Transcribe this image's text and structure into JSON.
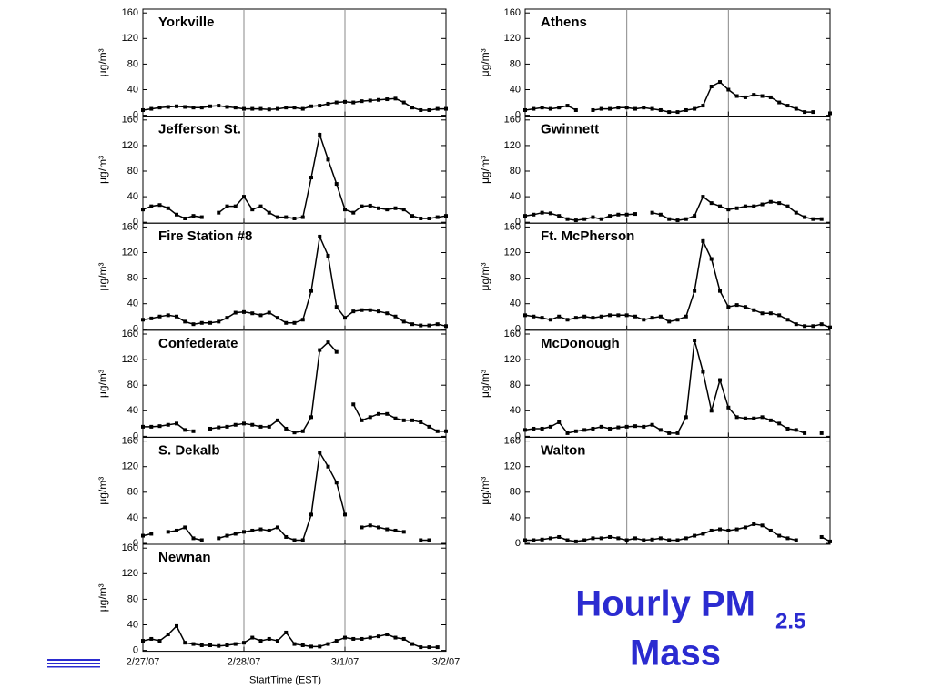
{
  "chart_data": [
    {
      "type": "line",
      "title": "Yorkville",
      "ylabel": "μg/m³",
      "xlim": [
        0,
        72
      ],
      "xticks": [
        0,
        24,
        48,
        72
      ],
      "ylim": [
        0,
        166
      ],
      "yticks": [
        0,
        40,
        80,
        120,
        160
      ],
      "color": "#000000",
      "x": [
        0,
        2,
        4,
        6,
        8,
        10,
        12,
        14,
        16,
        18,
        20,
        22,
        24,
        26,
        28,
        30,
        32,
        34,
        36,
        38,
        40,
        42,
        44,
        46,
        48,
        50,
        52,
        54,
        56,
        58,
        60,
        62,
        64,
        66,
        68,
        70,
        72
      ],
      "values": [
        8,
        10,
        12,
        13,
        14,
        13,
        12,
        12,
        14,
        15,
        13,
        12,
        10,
        10,
        10,
        9,
        10,
        12,
        12,
        10,
        14,
        15,
        18,
        20,
        21,
        20,
        22,
        23,
        24,
        25,
        26,
        20,
        12,
        8,
        8,
        10,
        10
      ]
    },
    {
      "type": "line",
      "title": "Jefferson St.",
      "ylabel": "μg/m³",
      "xlim": [
        0,
        72
      ],
      "xticks": [
        0,
        24,
        48,
        72
      ],
      "ylim": [
        0,
        166
      ],
      "yticks": [
        0,
        40,
        80,
        120,
        160
      ],
      "color": "#000000",
      "x": [
        0,
        2,
        4,
        6,
        8,
        10,
        12,
        14,
        16,
        18,
        20,
        22,
        24,
        26,
        28,
        30,
        32,
        34,
        36,
        38,
        40,
        42,
        44,
        46,
        48,
        50,
        52,
        54,
        56,
        58,
        60,
        62,
        64,
        66,
        68,
        70,
        72
      ],
      "values": [
        20,
        25,
        27,
        22,
        12,
        6,
        10,
        8,
        null,
        15,
        25,
        25,
        40,
        20,
        25,
        15,
        8,
        8,
        6,
        8,
        70,
        137,
        98,
        60,
        20,
        15,
        25,
        26,
        22,
        20,
        22,
        20,
        10,
        6,
        6,
        8,
        10
      ]
    },
    {
      "type": "line",
      "title": "Fire Station #8",
      "ylabel": "μg/m³",
      "xlim": [
        0,
        72
      ],
      "xticks": [
        0,
        24,
        48,
        72
      ],
      "ylim": [
        0,
        166
      ],
      "yticks": [
        0,
        40,
        80,
        120,
        160
      ],
      "color": "#000000",
      "x": [
        0,
        2,
        4,
        6,
        8,
        10,
        12,
        14,
        16,
        18,
        20,
        22,
        24,
        26,
        28,
        30,
        32,
        34,
        36,
        38,
        40,
        42,
        44,
        46,
        48,
        50,
        52,
        54,
        56,
        58,
        60,
        62,
        64,
        66,
        68,
        70,
        72
      ],
      "values": [
        15,
        17,
        20,
        22,
        20,
        12,
        8,
        10,
        10,
        12,
        18,
        26,
        27,
        25,
        22,
        26,
        18,
        10,
        10,
        15,
        60,
        145,
        115,
        35,
        18,
        28,
        30,
        30,
        28,
        25,
        20,
        12,
        8,
        6,
        6,
        8,
        5
      ]
    },
    {
      "type": "line",
      "title": "Confederate",
      "ylabel": "μg/m³",
      "xlim": [
        0,
        72
      ],
      "xticks": [
        0,
        24,
        48,
        72
      ],
      "ylim": [
        0,
        166
      ],
      "yticks": [
        0,
        40,
        80,
        120,
        160
      ],
      "color": "#000000",
      "x": [
        0,
        2,
        4,
        6,
        8,
        10,
        12,
        14,
        16,
        18,
        20,
        22,
        24,
        26,
        28,
        30,
        32,
        34,
        36,
        38,
        40,
        42,
        44,
        46,
        48,
        50,
        52,
        54,
        56,
        58,
        60,
        62,
        64,
        66,
        68,
        70,
        72
      ],
      "values": [
        15,
        15,
        16,
        18,
        20,
        10,
        8,
        null,
        12,
        14,
        15,
        18,
        20,
        18,
        15,
        15,
        25,
        12,
        6,
        8,
        30,
        135,
        147,
        132,
        null,
        50,
        25,
        30,
        35,
        35,
        28,
        25,
        25,
        22,
        15,
        8,
        8
      ]
    },
    {
      "type": "line",
      "title": "S. Dekalb",
      "ylabel": "μg/m³",
      "xlim": [
        0,
        72
      ],
      "xticks": [
        0,
        24,
        48,
        72
      ],
      "ylim": [
        0,
        166
      ],
      "yticks": [
        0,
        40,
        80,
        120,
        160
      ],
      "color": "#000000",
      "x": [
        0,
        2,
        4,
        6,
        8,
        10,
        12,
        14,
        16,
        18,
        20,
        22,
        24,
        26,
        28,
        30,
        32,
        34,
        36,
        38,
        40,
        42,
        44,
        46,
        48,
        50,
        52,
        54,
        56,
        58,
        60,
        62,
        64,
        66,
        68,
        70,
        72
      ],
      "values": [
        12,
        15,
        null,
        18,
        20,
        25,
        8,
        5,
        null,
        8,
        12,
        15,
        18,
        20,
        22,
        20,
        25,
        10,
        5,
        5,
        45,
        142,
        120,
        95,
        45,
        null,
        25,
        28,
        25,
        22,
        20,
        18,
        null,
        5,
        5,
        null,
        null
      ]
    },
    {
      "type": "line",
      "title": "Newnan",
      "ylabel": "μg/m³",
      "xlabel": "StartTime (EST)",
      "xlim": [
        0,
        72
      ],
      "xticks": [
        {
          "value": 0,
          "label": "2/27/07"
        },
        {
          "value": 24,
          "label": "2/28/07"
        },
        {
          "value": 48,
          "label": "3/1/07"
        },
        {
          "value": 72,
          "label": "3/2/07"
        }
      ],
      "ylim": [
        0,
        166
      ],
      "yticks": [
        0,
        40,
        80,
        120,
        160
      ],
      "color": "#000000",
      "x": [
        0,
        2,
        4,
        6,
        8,
        10,
        12,
        14,
        16,
        18,
        20,
        22,
        24,
        26,
        28,
        30,
        32,
        34,
        36,
        38,
        40,
        42,
        44,
        46,
        48,
        50,
        52,
        54,
        56,
        58,
        60,
        62,
        64,
        66,
        68,
        70,
        72
      ],
      "values": [
        15,
        18,
        15,
        25,
        38,
        12,
        10,
        8,
        8,
        7,
        8,
        10,
        12,
        20,
        15,
        18,
        15,
        28,
        10,
        8,
        6,
        6,
        10,
        15,
        20,
        18,
        18,
        20,
        22,
        25,
        20,
        18,
        10,
        5,
        5,
        5,
        null
      ]
    },
    {
      "type": "line",
      "title": "Athens",
      "ylabel": "μg/m³",
      "xlim": [
        0,
        72
      ],
      "xticks": [
        0,
        24,
        48,
        72
      ],
      "ylim": [
        0,
        166
      ],
      "yticks": [
        0,
        40,
        80,
        120,
        160
      ],
      "color": "#000000",
      "x": [
        0,
        2,
        4,
        6,
        8,
        10,
        12,
        14,
        16,
        18,
        20,
        22,
        24,
        26,
        28,
        30,
        32,
        34,
        36,
        38,
        40,
        42,
        44,
        46,
        48,
        50,
        52,
        54,
        56,
        58,
        60,
        62,
        64,
        66,
        68,
        70,
        72
      ],
      "values": [
        8,
        10,
        12,
        10,
        12,
        15,
        8,
        null,
        8,
        10,
        10,
        12,
        12,
        10,
        12,
        10,
        8,
        5,
        5,
        8,
        10,
        15,
        45,
        52,
        40,
        30,
        28,
        32,
        30,
        28,
        20,
        15,
        10,
        5,
        5,
        null,
        3
      ]
    },
    {
      "type": "line",
      "title": "Gwinnett",
      "ylabel": "μg/m³",
      "xlim": [
        0,
        72
      ],
      "xticks": [
        0,
        24,
        48,
        72
      ],
      "ylim": [
        0,
        166
      ],
      "yticks": [
        0,
        40,
        80,
        120,
        160
      ],
      "color": "#000000",
      "x": [
        0,
        2,
        4,
        6,
        8,
        10,
        12,
        14,
        16,
        18,
        20,
        22,
        24,
        26,
        28,
        30,
        32,
        34,
        36,
        38,
        40,
        42,
        44,
        46,
        48,
        50,
        52,
        54,
        56,
        58,
        60,
        62,
        64,
        66,
        68,
        70,
        72
      ],
      "values": [
        10,
        12,
        15,
        14,
        10,
        5,
        3,
        5,
        8,
        5,
        10,
        12,
        12,
        13,
        null,
        15,
        12,
        5,
        3,
        5,
        10,
        40,
        30,
        25,
        20,
        22,
        25,
        25,
        28,
        32,
        30,
        25,
        15,
        8,
        5,
        5,
        null
      ]
    },
    {
      "type": "line",
      "title": "Ft. McPherson",
      "ylabel": "μg/m³",
      "xlim": [
        0,
        72
      ],
      "xticks": [
        0,
        24,
        48,
        72
      ],
      "ylim": [
        0,
        166
      ],
      "yticks": [
        0,
        40,
        80,
        120,
        160
      ],
      "color": "#000000",
      "x": [
        0,
        2,
        4,
        6,
        8,
        10,
        12,
        14,
        16,
        18,
        20,
        22,
        24,
        26,
        28,
        30,
        32,
        34,
        36,
        38,
        40,
        42,
        44,
        46,
        48,
        50,
        52,
        54,
        56,
        58,
        60,
        62,
        64,
        66,
        68,
        70,
        72
      ],
      "values": [
        22,
        20,
        18,
        15,
        20,
        15,
        18,
        20,
        18,
        20,
        22,
        22,
        22,
        20,
        15,
        18,
        20,
        12,
        15,
        20,
        60,
        138,
        110,
        60,
        35,
        38,
        35,
        30,
        25,
        25,
        22,
        15,
        8,
        5,
        5,
        8,
        3
      ]
    },
    {
      "type": "line",
      "title": "McDonough",
      "ylabel": "μg/m³",
      "xlim": [
        0,
        72
      ],
      "xticks": [
        0,
        24,
        48,
        72
      ],
      "ylim": [
        0,
        166
      ],
      "yticks": [
        0,
        40,
        80,
        120,
        160
      ],
      "color": "#000000",
      "x": [
        0,
        2,
        4,
        6,
        8,
        10,
        12,
        14,
        16,
        18,
        20,
        22,
        24,
        26,
        28,
        30,
        32,
        34,
        36,
        38,
        40,
        42,
        44,
        46,
        48,
        50,
        52,
        54,
        56,
        58,
        60,
        62,
        64,
        66,
        68,
        70,
        72
      ],
      "values": [
        10,
        12,
        12,
        15,
        22,
        5,
        8,
        10,
        12,
        15,
        12,
        14,
        15,
        16,
        15,
        18,
        10,
        5,
        5,
        30,
        150,
        101,
        40,
        88,
        45,
        30,
        28,
        28,
        30,
        25,
        20,
        12,
        10,
        5,
        null,
        5,
        null
      ]
    },
    {
      "type": "line",
      "title": "Walton",
      "ylabel": "μg/m³",
      "xlim": [
        0,
        72
      ],
      "xticks": [
        0,
        24,
        48,
        72
      ],
      "ylim": [
        0,
        166
      ],
      "yticks": [
        0,
        40,
        80,
        120,
        160
      ],
      "color": "#000000",
      "x": [
        0,
        2,
        4,
        6,
        8,
        10,
        12,
        14,
        16,
        18,
        20,
        22,
        24,
        26,
        28,
        30,
        32,
        34,
        36,
        38,
        40,
        42,
        44,
        46,
        48,
        50,
        52,
        54,
        56,
        58,
        60,
        62,
        64,
        66,
        68,
        70,
        72
      ],
      "values": [
        5,
        5,
        6,
        8,
        10,
        5,
        3,
        5,
        8,
        8,
        10,
        8,
        5,
        8,
        5,
        6,
        8,
        5,
        5,
        8,
        12,
        15,
        20,
        22,
        20,
        22,
        25,
        30,
        28,
        20,
        12,
        8,
        5,
        null,
        null,
        10,
        3
      ]
    }
  ],
  "caption": {
    "text": "Hourly PM",
    "subscript": "2.5",
    "line2": "Mass"
  }
}
